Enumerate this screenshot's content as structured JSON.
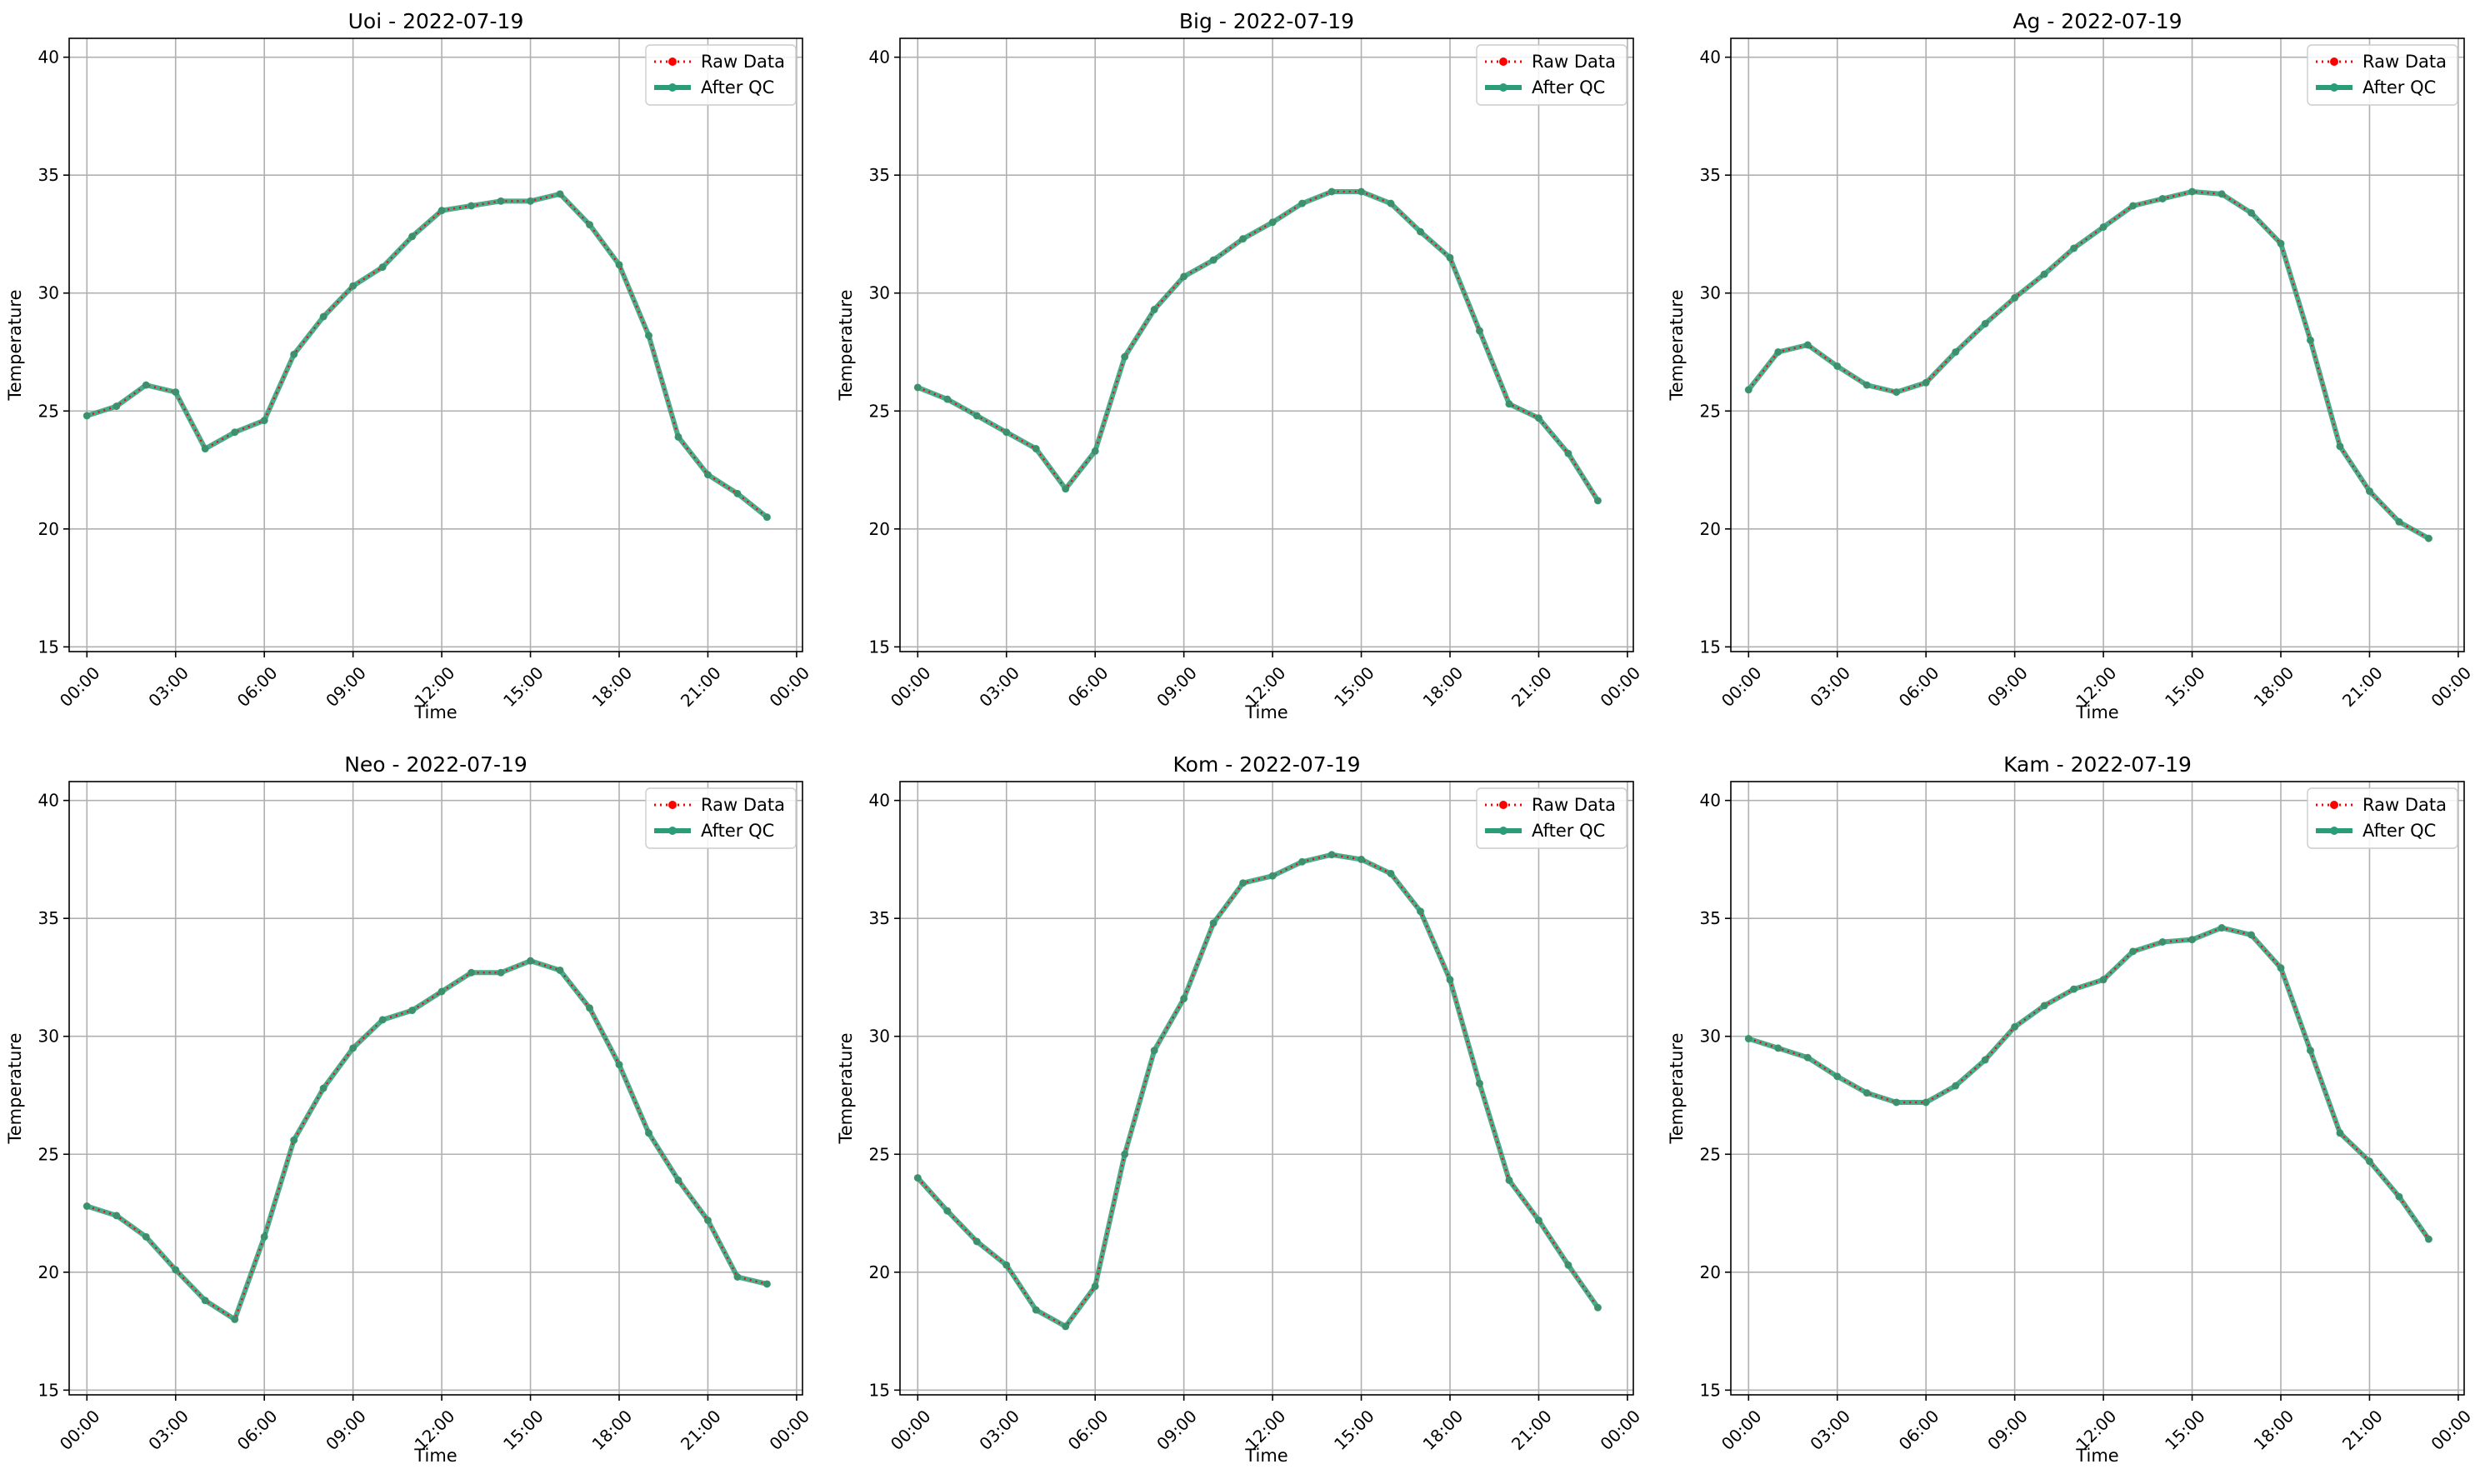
{
  "figure": {
    "colors": {
      "raw": "#ff0000",
      "qc": "#2a9d78",
      "grid": "#b0b0b0",
      "axis": "#000000",
      "legend_border": "#cccccc"
    }
  },
  "chart_data": [
    {
      "type": "line",
      "title": "Uoi - 2022-07-19",
      "xlabel": "Time",
      "ylabel": "Temperature",
      "xtick_labels": [
        "00:00",
        "03:00",
        "06:00",
        "09:00",
        "12:00",
        "15:00",
        "18:00",
        "21:00",
        "00:00"
      ],
      "yticks": [
        15,
        20,
        25,
        30,
        35,
        40
      ],
      "ylim": [
        14.8,
        40.8
      ],
      "xlim": [
        -0.6,
        24.2
      ],
      "grid": true,
      "legend_position": "top-right",
      "x": [
        0,
        1,
        2,
        3,
        4,
        5,
        6,
        7,
        8,
        9,
        10,
        11,
        12,
        13,
        14,
        15,
        16,
        17,
        18,
        19,
        20,
        21,
        22,
        23
      ],
      "series": [
        {
          "name": "Raw Data",
          "values": [
            24.8,
            25.2,
            26.1,
            25.8,
            23.4,
            24.1,
            24.6,
            27.4,
            29.0,
            30.3,
            31.1,
            32.4,
            33.5,
            33.7,
            33.9,
            33.9,
            34.2,
            32.9,
            31.2,
            28.2,
            23.9,
            22.3,
            21.5,
            20.5
          ]
        },
        {
          "name": "After QC",
          "values": [
            24.8,
            25.2,
            26.1,
            25.8,
            23.4,
            24.1,
            24.6,
            27.4,
            29.0,
            30.3,
            31.1,
            32.4,
            33.5,
            33.7,
            33.9,
            33.9,
            34.2,
            32.9,
            31.2,
            28.2,
            23.9,
            22.3,
            21.5,
            20.5
          ]
        }
      ]
    },
    {
      "type": "line",
      "title": "Big - 2022-07-19",
      "xlabel": "Time",
      "ylabel": "Temperature",
      "xtick_labels": [
        "00:00",
        "03:00",
        "06:00",
        "09:00",
        "12:00",
        "15:00",
        "18:00",
        "21:00",
        "00:00"
      ],
      "yticks": [
        15,
        20,
        25,
        30,
        35,
        40
      ],
      "ylim": [
        14.8,
        40.8
      ],
      "xlim": [
        -0.6,
        24.2
      ],
      "grid": true,
      "legend_position": "top-right",
      "x": [
        0,
        1,
        2,
        3,
        4,
        5,
        6,
        7,
        8,
        9,
        10,
        11,
        12,
        13,
        14,
        15,
        16,
        17,
        18,
        19,
        20,
        21,
        22,
        23
      ],
      "series": [
        {
          "name": "Raw Data",
          "values": [
            26.0,
            25.5,
            24.8,
            24.1,
            23.4,
            21.7,
            23.3,
            27.3,
            29.3,
            30.7,
            31.4,
            32.3,
            33.0,
            33.8,
            34.3,
            34.3,
            33.8,
            32.6,
            31.5,
            28.4,
            25.3,
            24.7,
            23.2,
            21.2
          ]
        },
        {
          "name": "After QC",
          "values": [
            26.0,
            25.5,
            24.8,
            24.1,
            23.4,
            21.7,
            23.3,
            27.3,
            29.3,
            30.7,
            31.4,
            32.3,
            33.0,
            33.8,
            34.3,
            34.3,
            33.8,
            32.6,
            31.5,
            28.4,
            25.3,
            24.7,
            23.2,
            21.2
          ]
        }
      ]
    },
    {
      "type": "line",
      "title": "Ag - 2022-07-19",
      "xlabel": "Time",
      "ylabel": "Temperature",
      "xtick_labels": [
        "00:00",
        "03:00",
        "06:00",
        "09:00",
        "12:00",
        "15:00",
        "18:00",
        "21:00",
        "00:00"
      ],
      "yticks": [
        15,
        20,
        25,
        30,
        35,
        40
      ],
      "ylim": [
        14.8,
        40.8
      ],
      "xlim": [
        -0.6,
        24.2
      ],
      "grid": true,
      "legend_position": "top-right",
      "x": [
        0,
        1,
        2,
        3,
        4,
        5,
        6,
        7,
        8,
        9,
        10,
        11,
        12,
        13,
        14,
        15,
        16,
        17,
        18,
        19,
        20,
        21,
        22,
        23
      ],
      "series": [
        {
          "name": "Raw Data",
          "values": [
            25.9,
            27.5,
            27.8,
            26.9,
            26.1,
            25.8,
            26.2,
            27.5,
            28.7,
            29.8,
            30.8,
            31.9,
            32.8,
            33.7,
            34.0,
            34.3,
            34.2,
            33.4,
            32.1,
            28.0,
            23.5,
            21.6,
            20.3,
            19.6
          ]
        },
        {
          "name": "After QC",
          "values": [
            25.9,
            27.5,
            27.8,
            26.9,
            26.1,
            25.8,
            26.2,
            27.5,
            28.7,
            29.8,
            30.8,
            31.9,
            32.8,
            33.7,
            34.0,
            34.3,
            34.2,
            33.4,
            32.1,
            28.0,
            23.5,
            21.6,
            20.3,
            19.6
          ]
        }
      ]
    },
    {
      "type": "line",
      "title": "Neo - 2022-07-19",
      "xlabel": "Time",
      "ylabel": "Temperature",
      "xtick_labels": [
        "00:00",
        "03:00",
        "06:00",
        "09:00",
        "12:00",
        "15:00",
        "18:00",
        "21:00",
        "00:00"
      ],
      "yticks": [
        15,
        20,
        25,
        30,
        35,
        40
      ],
      "ylim": [
        14.8,
        40.8
      ],
      "xlim": [
        -0.6,
        24.2
      ],
      "grid": true,
      "legend_position": "top-right",
      "x": [
        0,
        1,
        2,
        3,
        4,
        5,
        6,
        7,
        8,
        9,
        10,
        11,
        12,
        13,
        14,
        15,
        16,
        17,
        18,
        19,
        20,
        21,
        22,
        23
      ],
      "series": [
        {
          "name": "Raw Data",
          "values": [
            22.8,
            22.4,
            21.5,
            20.1,
            18.8,
            18.0,
            21.5,
            25.6,
            27.8,
            29.5,
            30.7,
            31.1,
            31.9,
            32.7,
            32.7,
            33.2,
            32.8,
            31.2,
            28.8,
            25.9,
            23.9,
            22.2,
            19.8,
            19.5
          ]
        },
        {
          "name": "After QC",
          "values": [
            22.8,
            22.4,
            21.5,
            20.1,
            18.8,
            18.0,
            21.5,
            25.6,
            27.8,
            29.5,
            30.7,
            31.1,
            31.9,
            32.7,
            32.7,
            33.2,
            32.8,
            31.2,
            28.8,
            25.9,
            23.9,
            22.2,
            19.8,
            19.5
          ]
        }
      ]
    },
    {
      "type": "line",
      "title": "Kom - 2022-07-19",
      "xlabel": "Time",
      "ylabel": "Temperature",
      "xtick_labels": [
        "00:00",
        "03:00",
        "06:00",
        "09:00",
        "12:00",
        "15:00",
        "18:00",
        "21:00",
        "00:00"
      ],
      "yticks": [
        15,
        20,
        25,
        30,
        35,
        40
      ],
      "ylim": [
        14.8,
        40.8
      ],
      "xlim": [
        -0.6,
        24.2
      ],
      "grid": true,
      "legend_position": "top-right",
      "x": [
        0,
        1,
        2,
        3,
        4,
        5,
        6,
        7,
        8,
        9,
        10,
        11,
        12,
        13,
        14,
        15,
        16,
        17,
        18,
        19,
        20,
        21,
        22,
        23
      ],
      "series": [
        {
          "name": "Raw Data",
          "values": [
            24.0,
            22.6,
            21.3,
            20.3,
            18.4,
            17.7,
            19.4,
            25.0,
            29.4,
            31.6,
            34.8,
            36.5,
            36.8,
            37.4,
            37.7,
            37.5,
            36.9,
            35.3,
            32.4,
            28.0,
            23.9,
            22.2,
            20.3,
            18.5
          ]
        },
        {
          "name": "After QC",
          "values": [
            24.0,
            22.6,
            21.3,
            20.3,
            18.4,
            17.7,
            19.4,
            25.0,
            29.4,
            31.6,
            34.8,
            36.5,
            36.8,
            37.4,
            37.7,
            37.5,
            36.9,
            35.3,
            32.4,
            28.0,
            23.9,
            22.2,
            20.3,
            18.5
          ]
        }
      ]
    },
    {
      "type": "line",
      "title": "Kam - 2022-07-19",
      "xlabel": "Time",
      "ylabel": "Temperature",
      "xtick_labels": [
        "00:00",
        "03:00",
        "06:00",
        "09:00",
        "12:00",
        "15:00",
        "18:00",
        "21:00",
        "00:00"
      ],
      "yticks": [
        15,
        20,
        25,
        30,
        35,
        40
      ],
      "ylim": [
        14.8,
        40.8
      ],
      "xlim": [
        -0.6,
        24.2
      ],
      "grid": true,
      "legend_position": "top-right",
      "x": [
        0,
        1,
        2,
        3,
        4,
        5,
        6,
        7,
        8,
        9,
        10,
        11,
        12,
        13,
        14,
        15,
        16,
        17,
        18,
        19,
        20,
        21,
        22,
        23
      ],
      "series": [
        {
          "name": "Raw Data",
          "values": [
            29.9,
            29.5,
            29.1,
            28.3,
            27.6,
            27.2,
            27.2,
            27.9,
            29.0,
            30.4,
            31.3,
            32.0,
            32.4,
            33.6,
            34.0,
            34.1,
            34.6,
            34.3,
            32.9,
            29.4,
            25.9,
            24.7,
            23.2,
            21.4
          ]
        },
        {
          "name": "After QC",
          "values": [
            29.9,
            29.5,
            29.1,
            28.3,
            27.6,
            27.2,
            27.2,
            27.9,
            29.0,
            30.4,
            31.3,
            32.0,
            32.4,
            33.6,
            34.0,
            34.1,
            34.6,
            34.3,
            32.9,
            29.4,
            25.9,
            24.7,
            23.2,
            21.4
          ]
        }
      ]
    }
  ]
}
